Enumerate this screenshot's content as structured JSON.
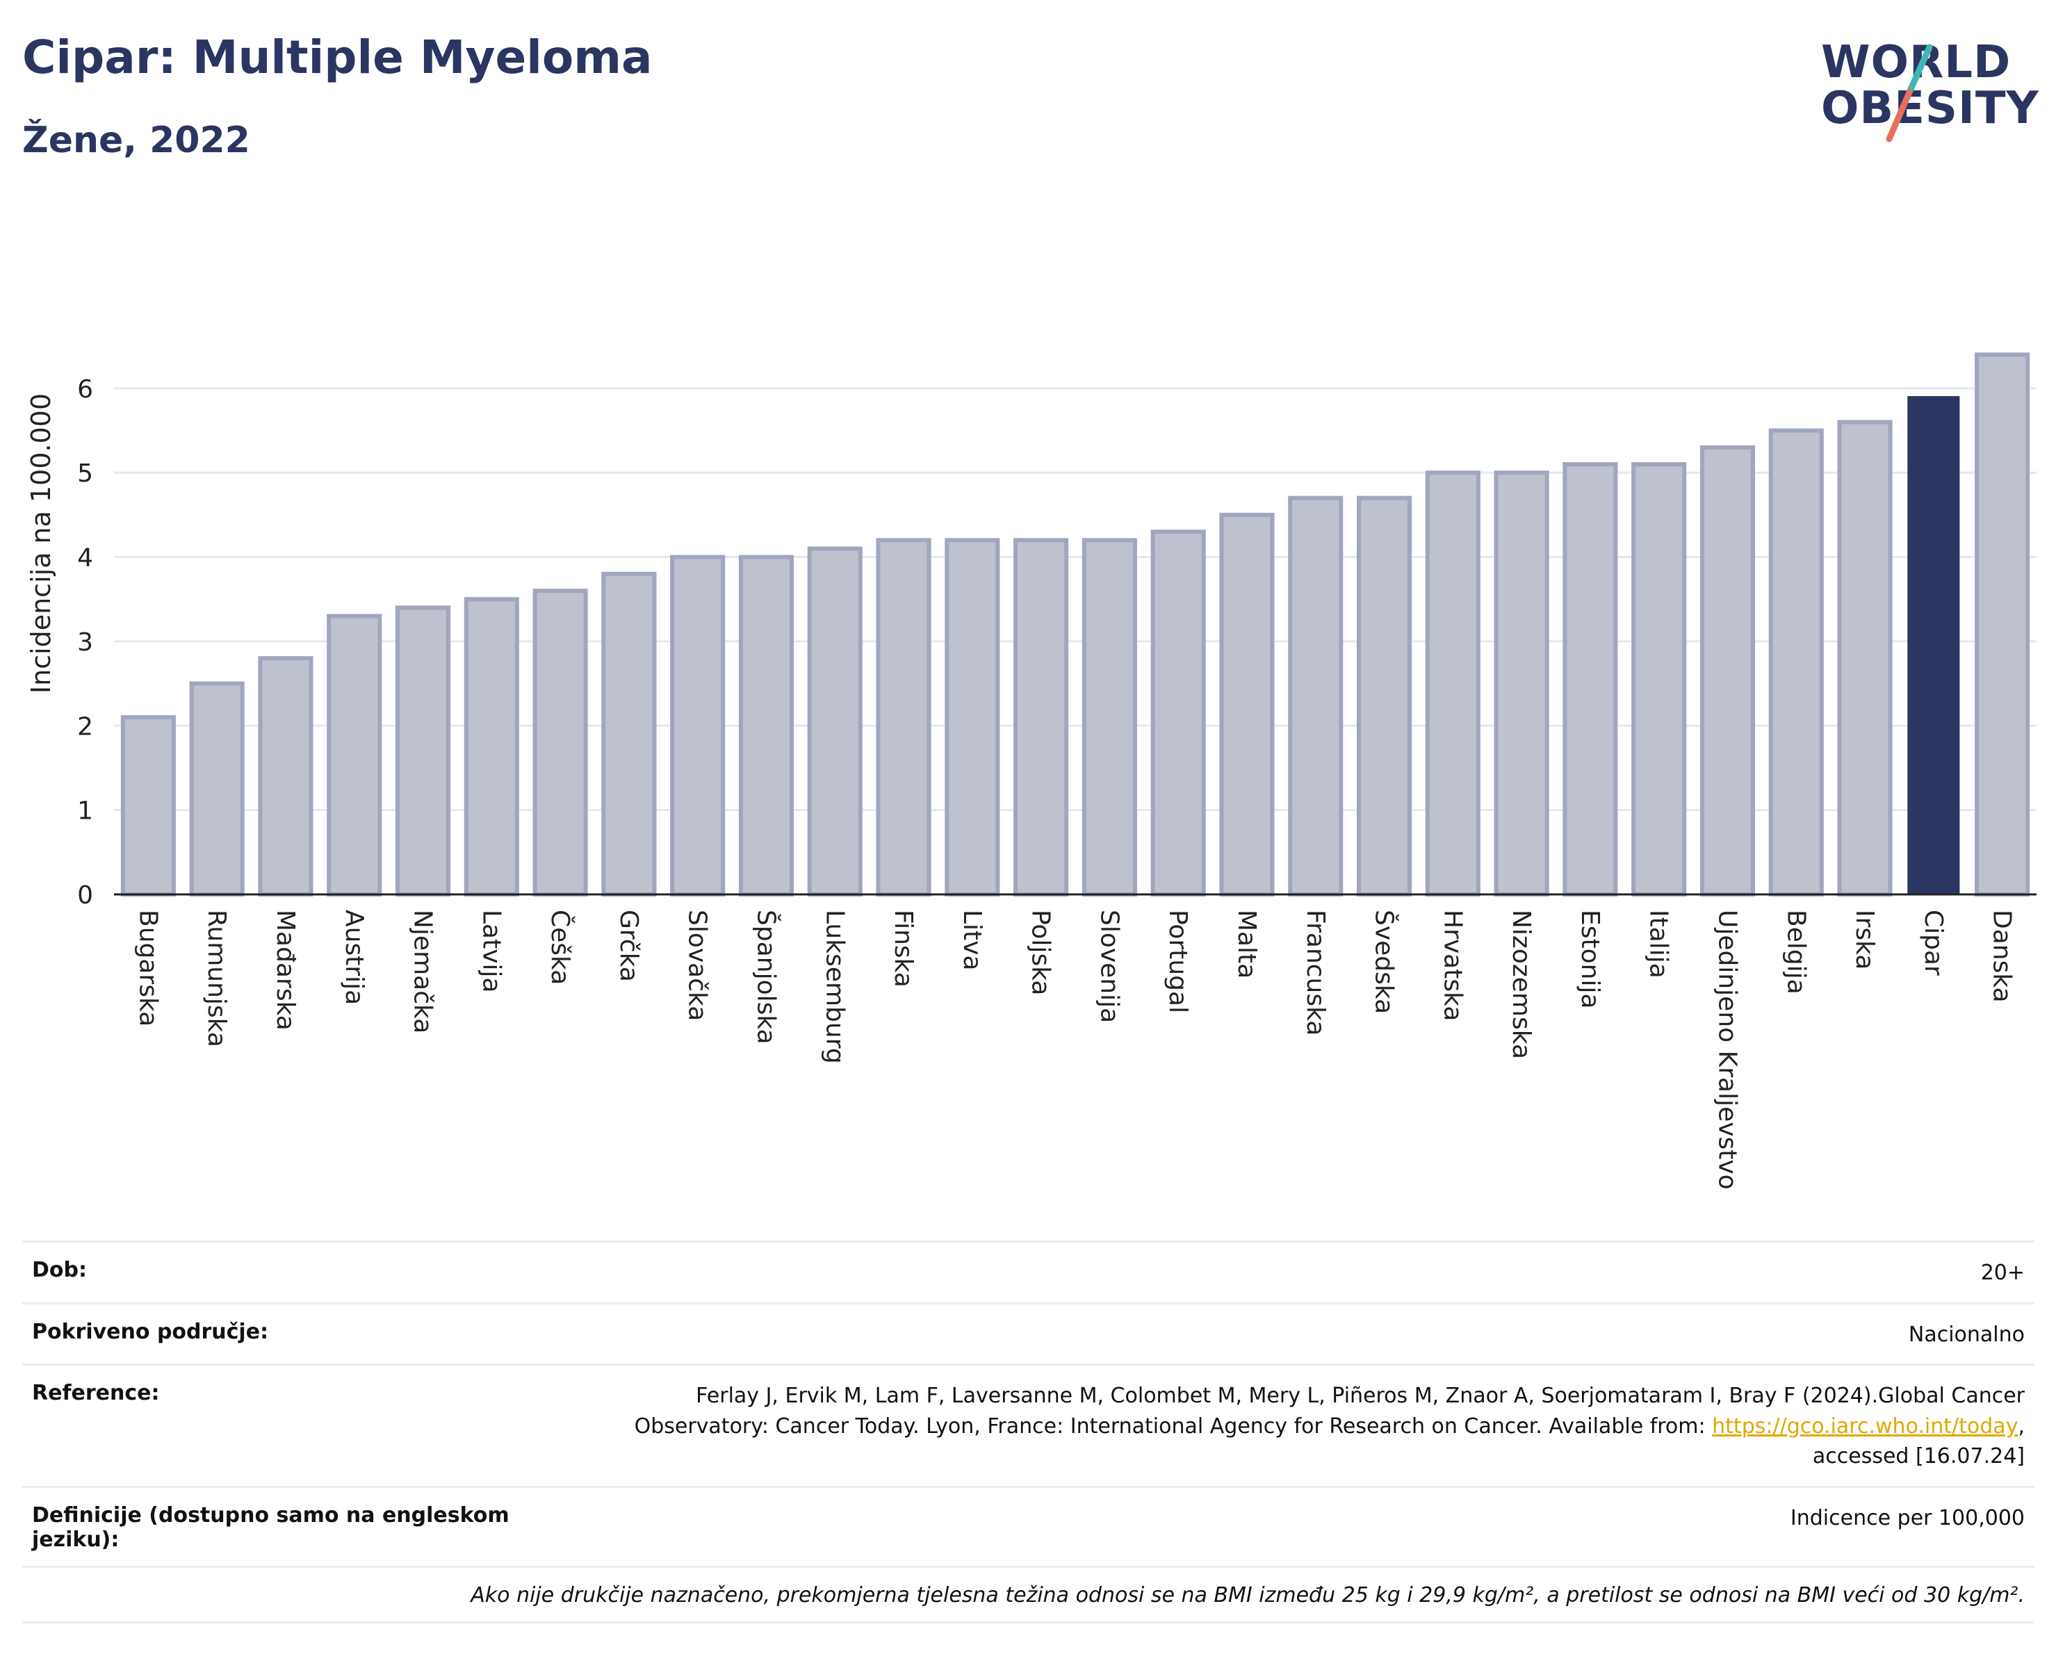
{
  "header": {
    "title": "Cipar: Multiple Myeloma",
    "subtitle": "Žene, 2022"
  },
  "logo": {
    "line1": "WORLD",
    "line2": "OBESITY"
  },
  "colors": {
    "bar": "#bec1ce",
    "bar_border": "#a0a6bd",
    "highlight": "#2b3561",
    "text": "#2b3561"
  },
  "chart_data": {
    "type": "bar",
    "ylabel": "Incidencija na 100.000",
    "ylim": [
      0,
      6.6
    ],
    "yticks": [
      0,
      1,
      2,
      3,
      4,
      5,
      6
    ],
    "grid": true,
    "highlight": "Cipar",
    "categories": [
      "Bugarska",
      "Rumunjska",
      "Mađarska",
      "Austrija",
      "Njemačka",
      "Latvija",
      "Češka",
      "Grčka",
      "Slovačka",
      "Španjolska",
      "Luksemburg",
      "Finska",
      "Litva",
      "Poljska",
      "Slovenija",
      "Portugal",
      "Malta",
      "Francuska",
      "Švedska",
      "Hrvatska",
      "Nizozemska",
      "Estonija",
      "Italija",
      "Ujedinjeno Kraljevstvo",
      "Belgija",
      "Irska",
      "Cipar",
      "Danska"
    ],
    "values": [
      2.1,
      2.5,
      2.8,
      3.3,
      3.4,
      3.5,
      3.6,
      3.8,
      4.0,
      4.0,
      4.1,
      4.2,
      4.2,
      4.2,
      4.2,
      4.3,
      4.5,
      4.7,
      4.7,
      5.0,
      5.0,
      5.1,
      5.1,
      5.3,
      5.5,
      5.6,
      5.9,
      6.4
    ]
  },
  "meta": {
    "age_label": "Dob:",
    "age_value": "20+",
    "coverage_label": "Pokriveno područje:",
    "coverage_value": "Nacionalno",
    "reference_label": "Reference:",
    "reference_text": "Ferlay J, Ervik M, Lam F, Laversanne M, Colombet M, Mery L, Piñeros M, Znaor A, Soerjomataram I, Bray F (2024).Global Cancer Observatory: Cancer Today. Lyon, France: International Agency for Research on Cancer. Available from:",
    "reference_link": "https://gco.iarc.who.int/today",
    "reference_suffix": ", accessed [16.07.24]",
    "definitions_label": "Definicije (dostupno samo na engleskom jeziku):",
    "definitions_value": "Indicence per 100,000",
    "note": "Ako nije drukčije naznačeno, prekomjerna tjelesna težina odnosi se na BMI između 25 kg i 29,9 kg/m², a pretilost se odnosi na BMI veći od 30 kg/m²."
  }
}
